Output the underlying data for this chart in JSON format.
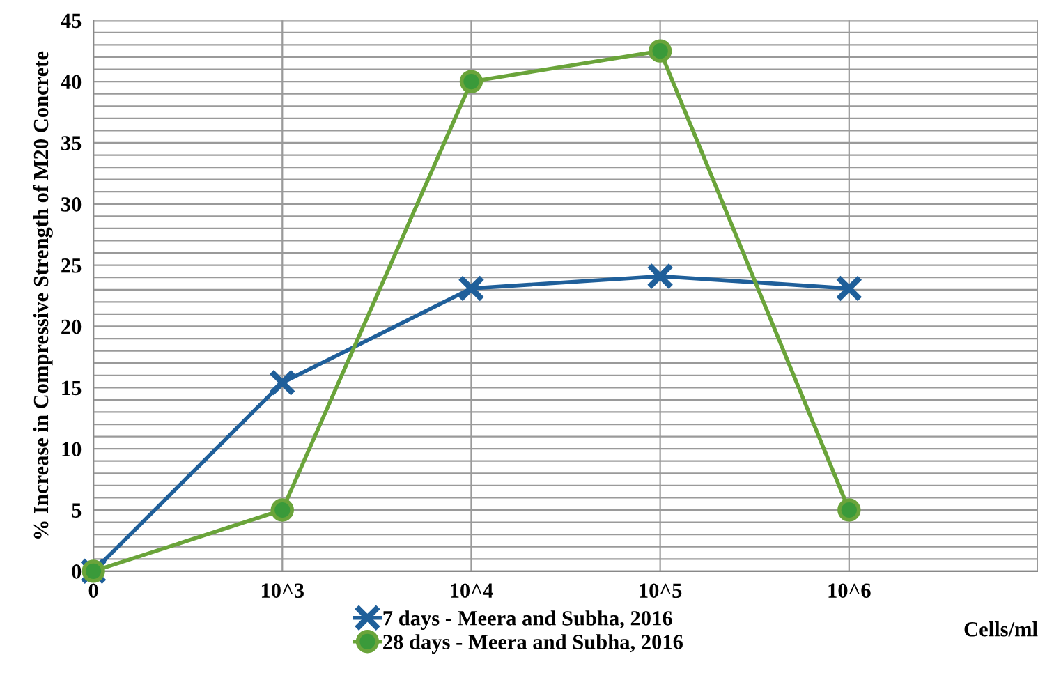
{
  "chart_data": {
    "type": "line",
    "ylabel": "% Increase in Compressive Strength of M20 Concrete",
    "xlabel": "Cells/ml",
    "categories": [
      "0",
      "10^3",
      "10^4",
      "10^5",
      "10^6",
      null
    ],
    "series": [
      {
        "name": "7 days - Meera and Subha, 2016",
        "color": "#1f5f9a",
        "marker": "cross",
        "values": [
          0,
          15.4,
          23.1,
          24.1,
          23.1,
          null
        ]
      },
      {
        "name": "28 days - Meera and Subha, 2016",
        "color": "#6aa43a",
        "marker": "circle",
        "values": [
          0,
          5,
          40,
          42.5,
          5,
          null
        ]
      }
    ],
    "ylim": [
      0,
      45
    ],
    "yticks": [
      0,
      {
        "value": 1,
        "label": null
      },
      {
        "value": 2,
        "label": null
      },
      {
        "value": 3,
        "label": null
      },
      {
        "value": 4,
        "label": null
      },
      5,
      {
        "value": 6,
        "label": null
      },
      {
        "value": 7,
        "label": null
      },
      {
        "value": 8,
        "label": null
      },
      {
        "value": 9,
        "label": null
      },
      10,
      {
        "value": 11,
        "label": null
      },
      {
        "value": 12,
        "label": null
      },
      {
        "value": 13,
        "label": null
      },
      {
        "value": 14,
        "label": null
      },
      15,
      {
        "value": 16,
        "label": null
      },
      {
        "value": 17,
        "label": null
      },
      {
        "value": 18,
        "label": null
      },
      {
        "value": 19,
        "label": null
      },
      20,
      {
        "value": 21,
        "label": null
      },
      {
        "value": 22,
        "label": null
      },
      {
        "value": 23,
        "label": null
      },
      {
        "value": 24,
        "label": null
      },
      25,
      {
        "value": 26,
        "label": null
      },
      {
        "value": 27,
        "label": null
      },
      {
        "value": 28,
        "label": null
      },
      {
        "value": 29,
        "label": null
      },
      30,
      {
        "value": 31,
        "label": null
      },
      {
        "value": 32,
        "label": null
      },
      {
        "value": 33,
        "label": null
      },
      {
        "value": 34,
        "label": null
      },
      35,
      {
        "value": 36,
        "label": null
      },
      {
        "value": 37,
        "label": null
      },
      {
        "value": 38,
        "label": null
      },
      {
        "value": 39,
        "label": null
      },
      40,
      {
        "value": 41,
        "label": null
      },
      {
        "value": 42,
        "label": null
      },
      {
        "value": 43,
        "label": null
      },
      {
        "value": 44,
        "label": null
      },
      45
    ],
    "grid": true,
    "legend": "bottom",
    "line_style": "solid"
  }
}
